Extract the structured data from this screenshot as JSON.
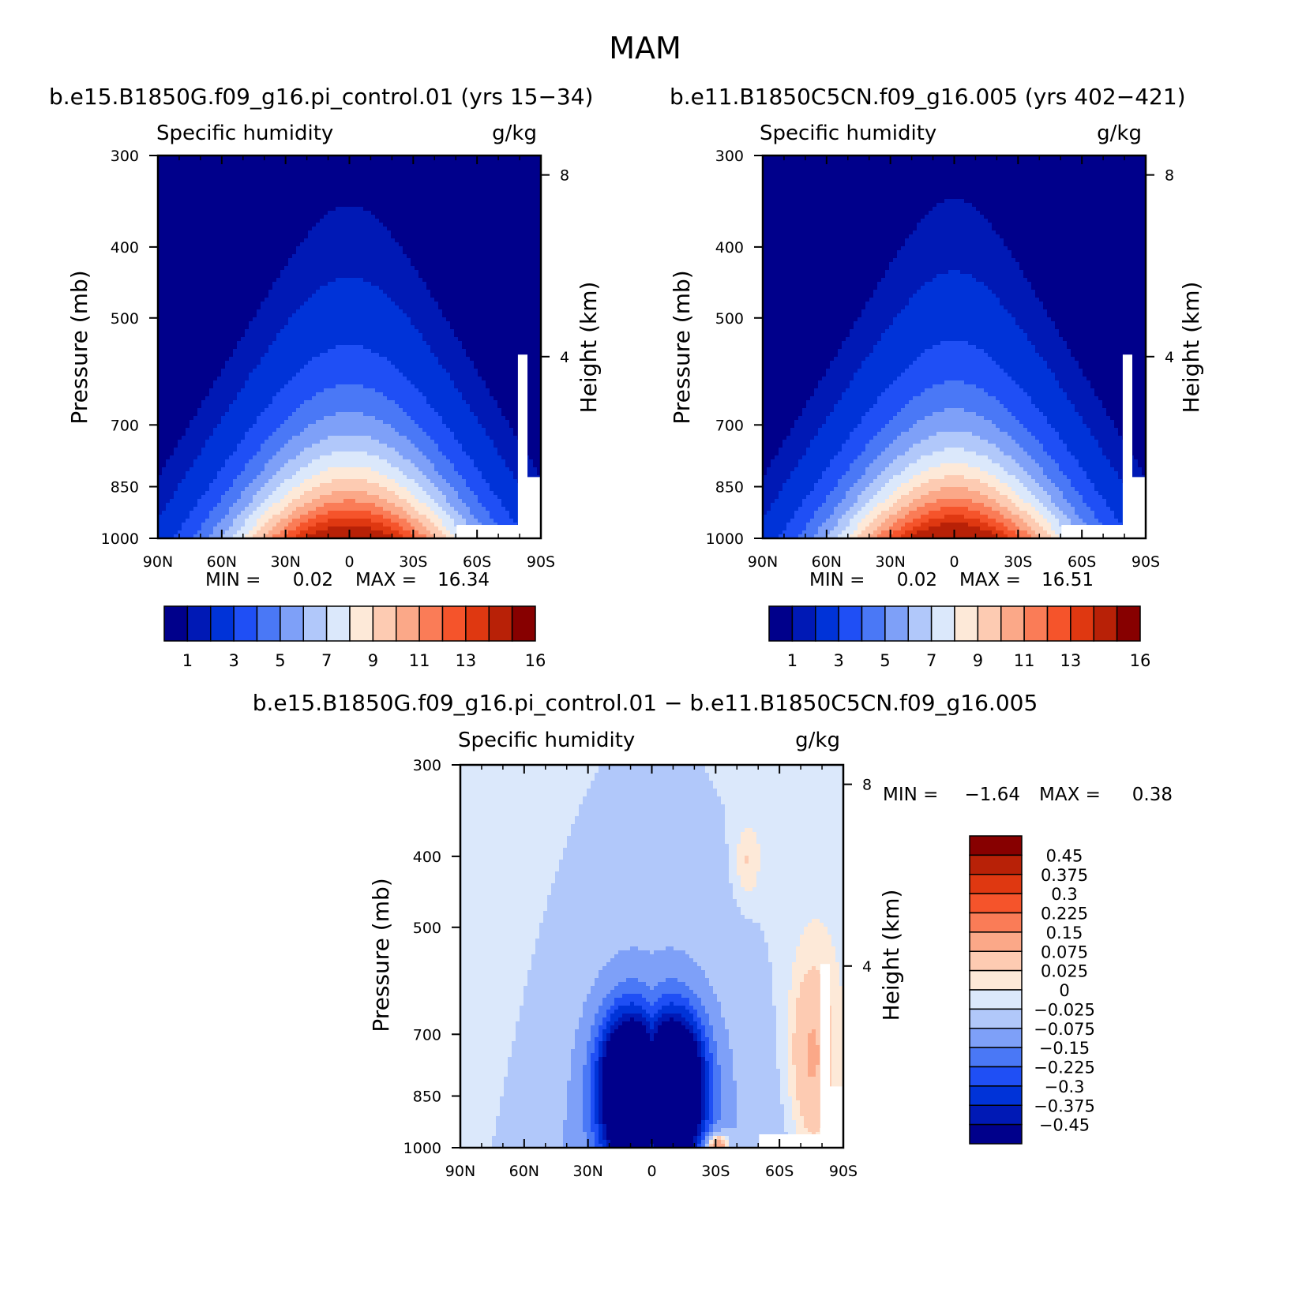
{
  "figure_title": "MAM",
  "chart_data": [
    {
      "type": "heatmap",
      "id": "panel-a",
      "title": "b.e15.B1850G.f09_g16.pi_control.01 (yrs 15-34)",
      "variable": "Specific humidity",
      "units": "g/kg",
      "ylabel": "Pressure (mb)",
      "ylabel_right": "Height (km)",
      "x_ticks": [
        "90N",
        "60N",
        "30N",
        "0",
        "30S",
        "60S",
        "90S"
      ],
      "y_ticks": [
        "300",
        "400",
        "500",
        "700",
        "850",
        "1000"
      ],
      "y_right_ticks": [
        "8",
        "4"
      ],
      "stats": {
        "min_label": "MIN =",
        "min": "0.02",
        "max_label": "MAX =",
        "max": "16.34"
      },
      "colorbar_labels": [
        "1",
        "3",
        "5",
        "7",
        "9",
        "11",
        "13",
        "16"
      ],
      "colors": [
        "#00008b",
        "#0019b5",
        "#0033d8",
        "#1f4ff5",
        "#4a78f6",
        "#7ea0f8",
        "#b1c8fa",
        "#dbe8fb",
        "#fde9d8",
        "#fdcbb2",
        "#fba888",
        "#fa7c57",
        "#f5542b",
        "#df3811",
        "#b82107",
        "#870000"
      ]
    },
    {
      "type": "heatmap",
      "id": "panel-b",
      "title": "b.e11.B1850C5CN.f09_g16.005 (yrs 402-421)",
      "variable": "Specific humidity",
      "units": "g/kg",
      "ylabel": "Pressure (mb)",
      "ylabel_right": "Height (km)",
      "x_ticks": [
        "90N",
        "60N",
        "30N",
        "0",
        "30S",
        "60S",
        "90S"
      ],
      "y_ticks": [
        "300",
        "400",
        "500",
        "700",
        "850",
        "1000"
      ],
      "y_right_ticks": [
        "8",
        "4"
      ],
      "stats": {
        "min_label": "MIN =",
        "min": "0.02",
        "max_label": "MAX =",
        "max": "16.51"
      },
      "colorbar_labels": [
        "1",
        "3",
        "5",
        "7",
        "9",
        "11",
        "13",
        "16"
      ],
      "colors": [
        "#00008b",
        "#0019b5",
        "#0033d8",
        "#1f4ff5",
        "#4a78f6",
        "#7ea0f8",
        "#b1c8fa",
        "#dbe8fb",
        "#fde9d8",
        "#fdcbb2",
        "#fba888",
        "#fa7c57",
        "#f5542b",
        "#df3811",
        "#b82107",
        "#870000"
      ]
    },
    {
      "type": "heatmap",
      "id": "panel-diff",
      "title": "b.e15.B1850G.f09_g16.pi_control.01 - b.e11.B1850C5CN.f09_g16.005",
      "variable": "Specific humidity",
      "units": "g/kg",
      "ylabel": "Pressure (mb)",
      "ylabel_right": "Height (km)",
      "x_ticks": [
        "90N",
        "60N",
        "30N",
        "0",
        "30S",
        "60S",
        "90S"
      ],
      "y_ticks": [
        "300",
        "400",
        "500",
        "700",
        "850",
        "1000"
      ],
      "y_right_ticks": [
        "8",
        "4"
      ],
      "stats": {
        "min_label": "MIN =",
        "min": "-1.64",
        "max_label": "MAX =",
        "max": "0.38"
      },
      "colorbar_labels": [
        "0.45",
        "0.375",
        "0.3",
        "0.225",
        "0.15",
        "0.075",
        "0.025",
        "0",
        "-0.025",
        "-0.075",
        "-0.15",
        "-0.225",
        "-0.3",
        "-0.375",
        "-0.45"
      ],
      "colors": [
        "#870000",
        "#b82107",
        "#df3811",
        "#f5542b",
        "#fa7c57",
        "#fba888",
        "#fdcbb2",
        "#fde9d8",
        "#dbe8fb",
        "#b1c8fa",
        "#7ea0f8",
        "#4a78f6",
        "#1f4ff5",
        "#0033d8",
        "#0019b5",
        "#00008b"
      ]
    }
  ]
}
